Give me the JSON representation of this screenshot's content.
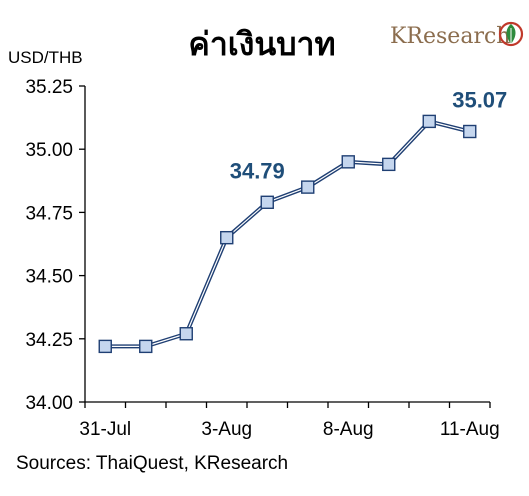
{
  "header": {
    "title": "ค่าเงินบาท",
    "logo_text": "KResearch"
  },
  "footer": {
    "source": "Sources: ThaiQuest, KResearch"
  },
  "colors": {
    "line": "#1f3f73",
    "marker_fill": "#c5d6ee",
    "marker_stroke": "#1f3f73",
    "callout": "#1f4e79",
    "brand": "#8b6d4e",
    "brand_green": "#2e8b3d",
    "brand_red": "#c0392b"
  },
  "chart_data": {
    "type": "line",
    "ylabel": "USD/THB",
    "ylim": [
      34.0,
      35.25
    ],
    "yticks": [
      "35.25",
      "35.00",
      "34.75",
      "34.50",
      "34.25",
      "34.00"
    ],
    "xticks": [
      "31-Jul",
      "3-Aug",
      "8-Aug",
      "11-Aug"
    ],
    "series": [
      {
        "values": [
          34.22,
          34.22,
          34.27,
          34.65,
          34.79,
          34.85,
          34.95,
          34.94,
          35.11,
          35.07
        ]
      }
    ],
    "annotations": [
      {
        "index": 4,
        "text": "34.79"
      },
      {
        "index": 9,
        "text": "35.07"
      }
    ]
  }
}
